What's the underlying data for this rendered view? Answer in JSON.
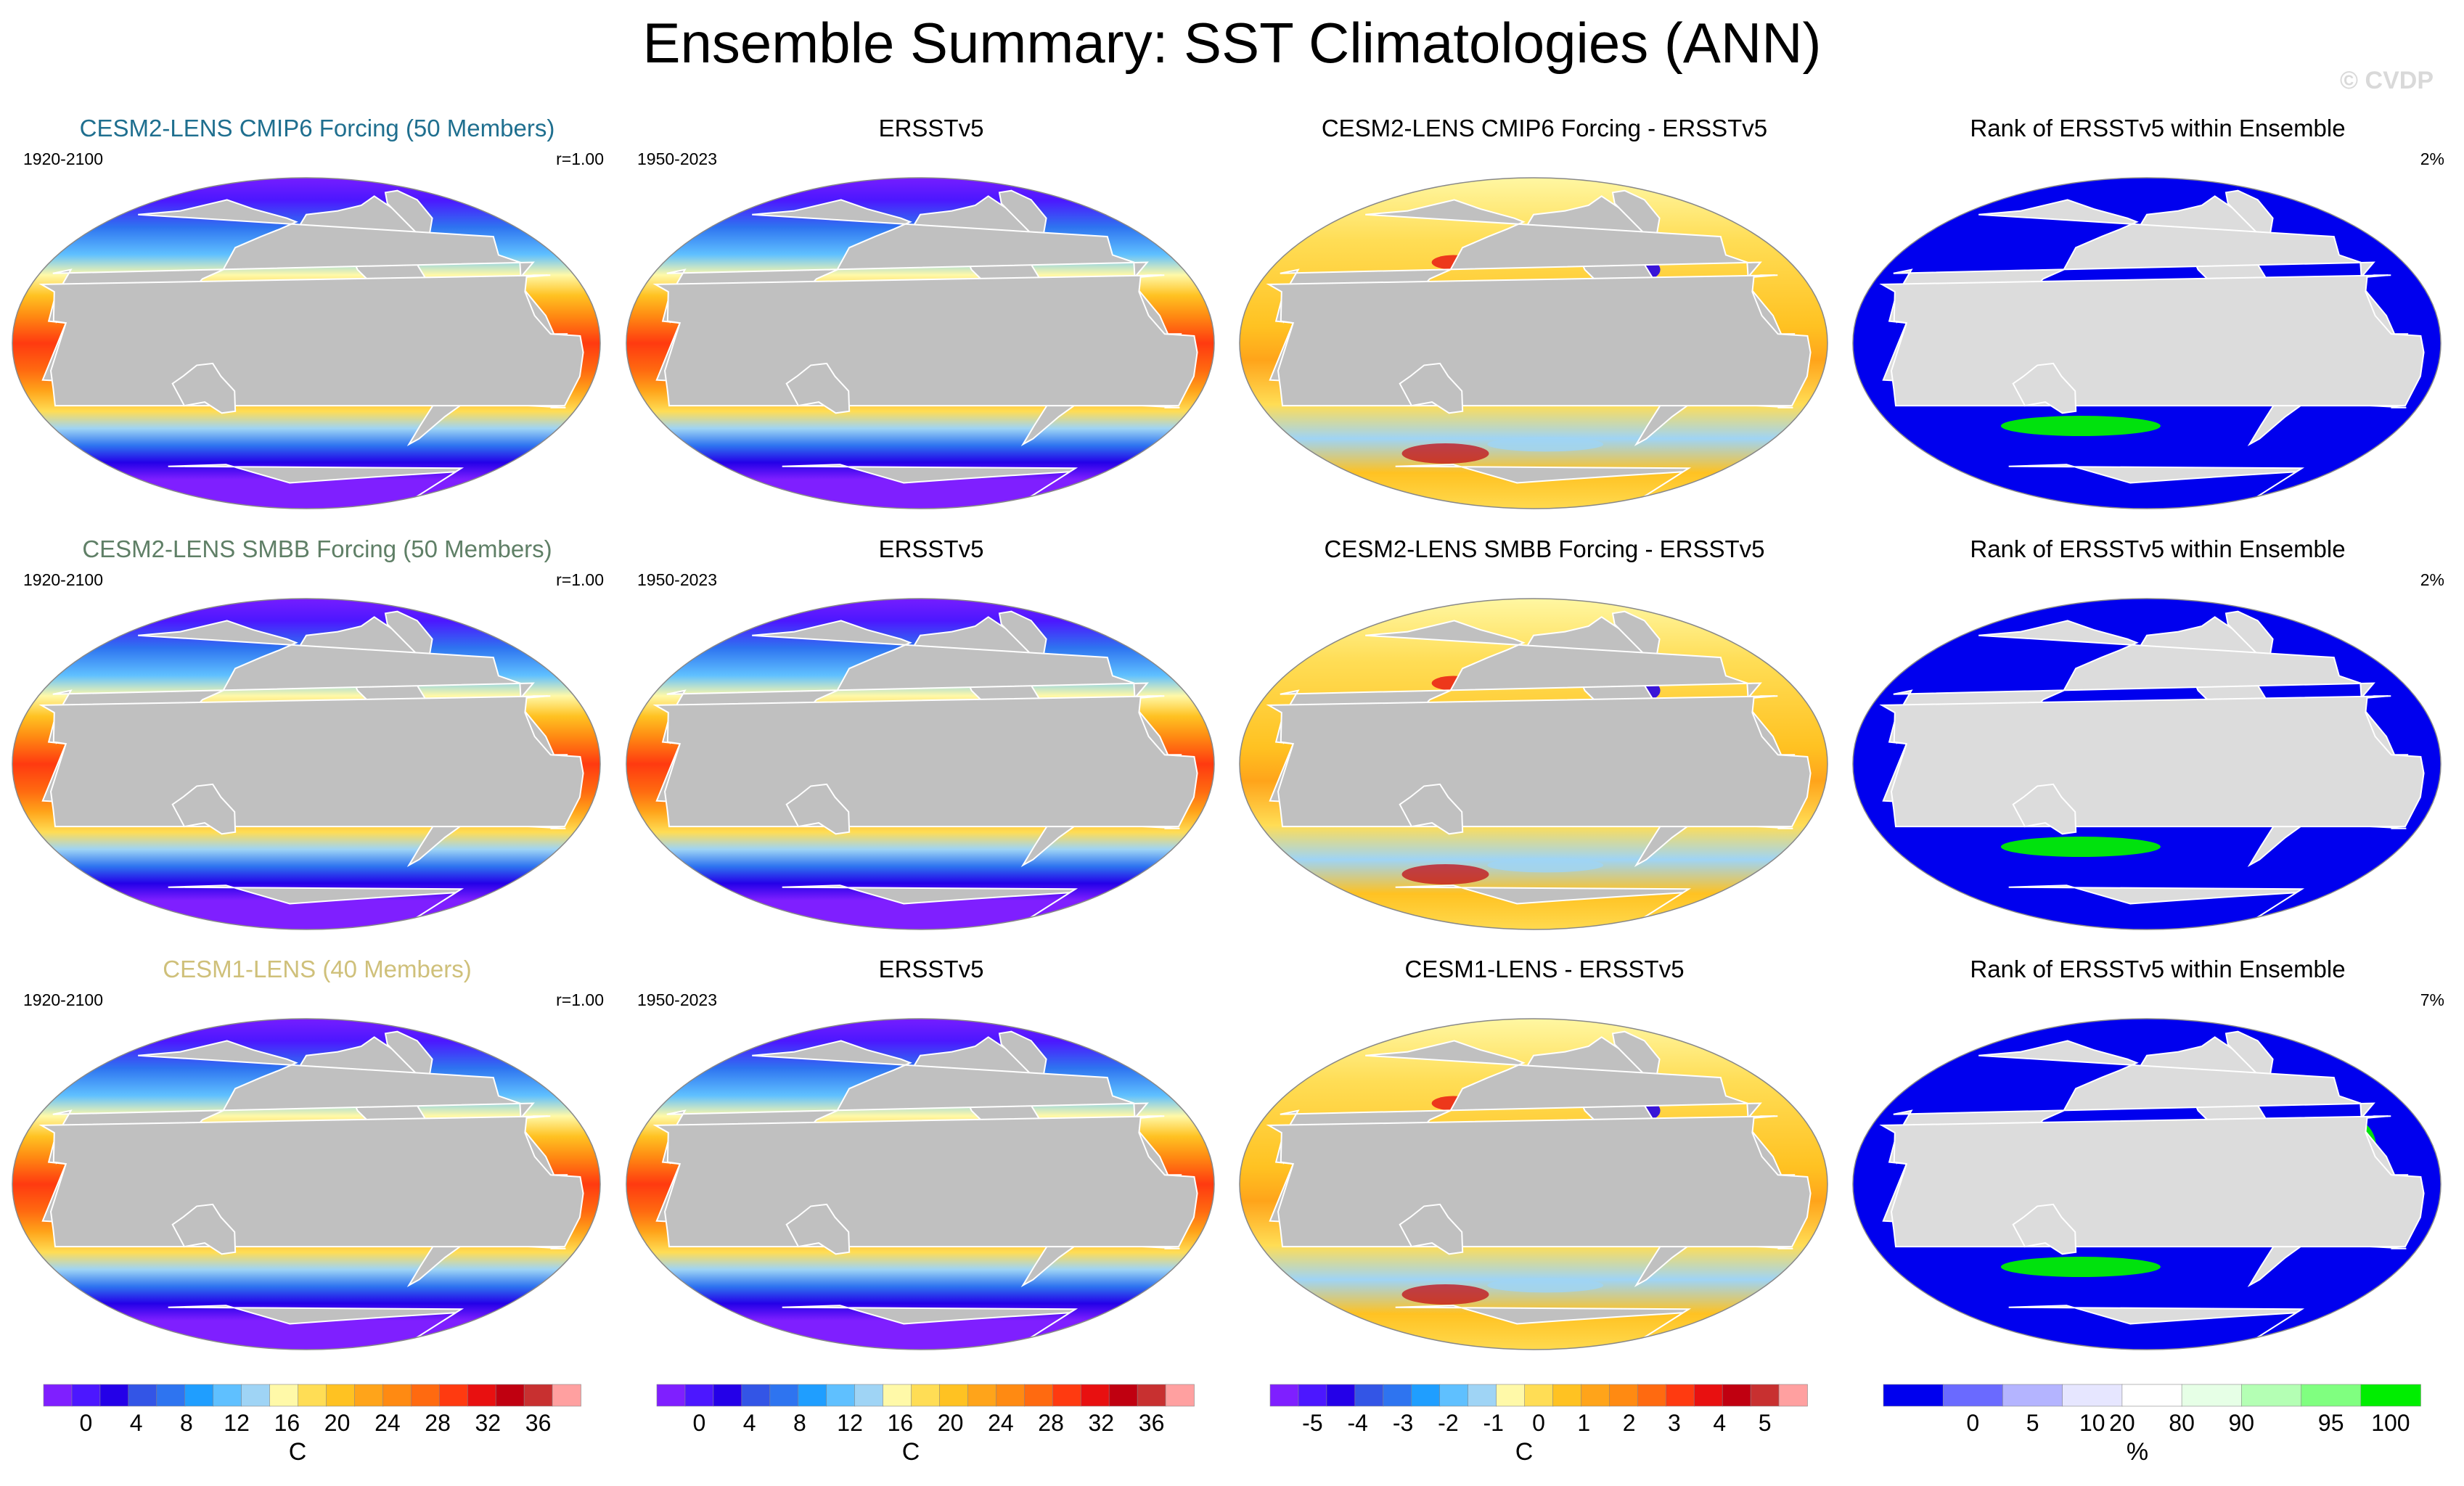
{
  "title": "Ensemble Summary: SST Climatologies (ANN)",
  "watermark": "© CVDP",
  "rows": [
    {
      "model_title": "CESM2-LENS CMIP6 Forcing (50 Members)",
      "model_title_color": "#1f6f8f",
      "model_period": "1920-2100",
      "pattern_corr": "r=1.00",
      "obs_title": "ERSSTv5",
      "obs_period": "1950-2023",
      "diff_title": "CESM2-LENS CMIP6 Forcing - ERSSTv5",
      "rank_title": "Rank of ERSSTv5 within Ensemble",
      "rank_pct": "2%"
    },
    {
      "model_title": "CESM2-LENS SMBB Forcing (50 Members)",
      "model_title_color": "#5f7f66",
      "model_period": "1920-2100",
      "pattern_corr": "r=1.00",
      "obs_title": "ERSSTv5",
      "obs_period": "1950-2023",
      "diff_title": "CESM2-LENS SMBB Forcing - ERSSTv5",
      "rank_title": "Rank of ERSSTv5 within Ensemble",
      "rank_pct": "2%"
    },
    {
      "model_title": "CESM1-LENS (40 Members)",
      "model_title_color": "#cfc07a",
      "model_period": "1920-2100",
      "pattern_corr": "r=1.00",
      "obs_title": "ERSSTv5",
      "obs_period": "1950-2023",
      "diff_title": "CESM1-LENS - ERSSTv5",
      "rank_title": "Rank of ERSSTv5 within Ensemble",
      "rank_pct": "7%"
    }
  ],
  "colorbars": [
    {
      "unit": "C",
      "labels": [
        "0",
        "4",
        "8",
        "12",
        "16",
        "20",
        "24",
        "28",
        "32",
        "36"
      ],
      "colors": [
        "#7f1fff",
        "#4c17ff",
        "#2400e8",
        "#3355e6",
        "#2e74f0",
        "#1f9eff",
        "#5fc0ff",
        "#9fd4f5",
        "#fff9a8",
        "#ffdd55",
        "#ffc222",
        "#ffa41a",
        "#ff8a12",
        "#ff6a10",
        "#ff3a10",
        "#e81010",
        "#c00010",
        "#c83030",
        "#ffa0a0"
      ]
    },
    {
      "unit": "C",
      "labels": [
        "0",
        "4",
        "8",
        "12",
        "16",
        "20",
        "24",
        "28",
        "32",
        "36"
      ],
      "colors": [
        "#7f1fff",
        "#4c17ff",
        "#2400e8",
        "#3355e6",
        "#2e74f0",
        "#1f9eff",
        "#5fc0ff",
        "#9fd4f5",
        "#fff9a8",
        "#ffdd55",
        "#ffc222",
        "#ffa41a",
        "#ff8a12",
        "#ff6a10",
        "#ff3a10",
        "#e81010",
        "#c00010",
        "#c83030",
        "#ffa0a0"
      ]
    },
    {
      "unit": "C",
      "labels": [
        "-5",
        "-4",
        "-3",
        "-2",
        "-1",
        "0",
        "1",
        "2",
        "3",
        "4",
        "5"
      ],
      "colors": [
        "#7f1fff",
        "#4c17ff",
        "#2400e8",
        "#3355e6",
        "#2e74f0",
        "#1f9eff",
        "#5fc0ff",
        "#9fd4f5",
        "#fff9a8",
        "#ffdd55",
        "#ffc222",
        "#ffa41a",
        "#ff8a12",
        "#ff6a10",
        "#ff3a10",
        "#e81010",
        "#c00010",
        "#c83030",
        "#ffa0a0"
      ]
    },
    {
      "unit": "%",
      "labels": [
        "0",
        "5",
        "10",
        "20",
        "80",
        "90",
        "95",
        "100"
      ],
      "colors": [
        "#0000ee",
        "#6a6aff",
        "#b4b4ff",
        "#e6e6ff",
        "#ffffff",
        "#e6ffe6",
        "#b4ffb4",
        "#80ff80",
        "#00ee00"
      ]
    }
  ],
  "chart_data": [
    {
      "type": "heatmap",
      "panel": "model-climatology",
      "rows": 3,
      "variable": "SST annual climatology",
      "unit": "C",
      "range": [
        0,
        36
      ]
    },
    {
      "type": "heatmap",
      "panel": "observed-climatology",
      "rows": 3,
      "variable": "SST annual climatology (ERSSTv5)",
      "unit": "C",
      "range": [
        0,
        36
      ]
    },
    {
      "type": "heatmap",
      "panel": "difference",
      "rows": 3,
      "variable": "Model minus ERSSTv5",
      "unit": "C",
      "range": [
        -5,
        5
      ]
    },
    {
      "type": "heatmap",
      "panel": "rank",
      "rows": 3,
      "variable": "Rank of ERSSTv5 within ensemble",
      "unit": "%",
      "range": [
        0,
        100
      ]
    }
  ]
}
